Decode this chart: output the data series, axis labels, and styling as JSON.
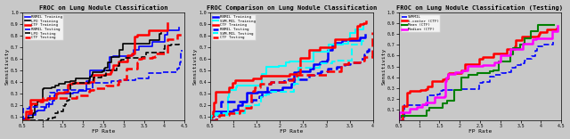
{
  "fig1": {
    "title": "FROC on Lung Nodule Classification",
    "xlabel": "FP Rate",
    "ylabel": "Sensitivity",
    "xlim": [
      0.5,
      4.5
    ],
    "ylim": [
      0.07,
      1.0
    ],
    "xticks": [
      0.5,
      1.0,
      1.5,
      2.0,
      2.5,
      3.0,
      3.5,
      4.0,
      4.5
    ],
    "xticklabels": [
      "0.5",
      "1",
      "1.5",
      "2",
      "2.5",
      "3",
      "3.5",
      "4",
      "4.5"
    ],
    "yticks": [
      0.1,
      0.2,
      0.3,
      0.4,
      0.5,
      0.6,
      0.7,
      0.8,
      0.9,
      1.0
    ],
    "yticklabels": [
      "0.1",
      "0.2",
      "0.3",
      "0.4",
      "0.5",
      "0.6",
      "0.7",
      "0.8",
      "0.9",
      "1.0"
    ],
    "legend": [
      "RNMIL Training",
      "LPO Training",
      "CTF Training",
      "RNMIL Testing",
      "LPO Testing",
      "CTF Testing"
    ],
    "colors": [
      "blue",
      "black",
      "red",
      "blue",
      "black",
      "red"
    ],
    "styles": [
      "-",
      "-",
      "-",
      "--",
      "--",
      "--"
    ],
    "linewidths": [
      1.2,
      1.2,
      1.8,
      1.2,
      1.2,
      1.8
    ]
  },
  "fig2": {
    "title": "FROC Comparison on Lung Nodule Classification",
    "xlabel": "FP Rate",
    "ylabel": "Sensitivity",
    "xlim": [
      0.5,
      4.0
    ],
    "ylim": [
      0.07,
      1.0
    ],
    "xticks": [
      0.5,
      1.0,
      1.5,
      2.0,
      2.5,
      3.0,
      3.5,
      4.0
    ],
    "xticklabels": [
      "0.5",
      "1",
      "1.5",
      "2",
      "2.5",
      "3",
      "3.5",
      "4"
    ],
    "yticks": [
      0.1,
      0.2,
      0.3,
      0.4,
      0.5,
      0.6,
      0.7,
      0.8,
      0.9,
      1.0
    ],
    "yticklabels": [
      "0.1",
      "0.2",
      "0.3",
      "0.4",
      "0.5",
      "0.6",
      "0.7",
      "0.8",
      "0.9",
      "1.0"
    ],
    "legend": [
      "RNMIL Training",
      "SVM-MIL Training",
      "CTF Training",
      "RNMIL Testing",
      "SVM-MIL Testing",
      "CTF Testing"
    ],
    "colors": [
      "blue",
      "cyan",
      "red",
      "blue",
      "cyan",
      "red"
    ],
    "styles": [
      "-",
      "-",
      "-",
      "--",
      "--",
      "--"
    ],
    "linewidths": [
      1.8,
      1.5,
      1.8,
      1.8,
      1.5,
      1.8
    ]
  },
  "fig3": {
    "title": "FROC on Lung Nodule Classification (Testing)",
    "xlabel": "FP Rate",
    "ylabel": "Sensitivity",
    "xlim": [
      0.5,
      4.5
    ],
    "ylim": [
      0.0,
      1.0
    ],
    "xticks": [
      0.5,
      1.0,
      1.5,
      2.0,
      2.5,
      3.0,
      3.5,
      4.0,
      4.5
    ],
    "xticklabels": [
      "0.5",
      "1",
      "1.5",
      "2",
      "2.5",
      "3",
      "3.5",
      "4",
      "4.5"
    ],
    "yticks": [
      0.1,
      0.2,
      0.3,
      0.4,
      0.5,
      0.6,
      0.7,
      0.8,
      0.9,
      1.0
    ],
    "yticklabels": [
      "0.1",
      "0.2",
      "0.3",
      "0.4",
      "0.5",
      "0.6",
      "0.7",
      "0.8",
      "0.9",
      "1.0"
    ],
    "legend": [
      "SVMMIL",
      "t-center (CTF)",
      "Mean (CTF)",
      "Median (CTF)"
    ],
    "colors": [
      "blue",
      "red",
      "green",
      "magenta"
    ],
    "styles": [
      "--",
      "-",
      "-",
      "-"
    ],
    "linewidths": [
      1.2,
      1.8,
      1.5,
      1.8
    ]
  },
  "bg_color": "#c8c8c8",
  "axes_bg_color": "#c8c8c8",
  "font_family": "monospace",
  "title_fontsize": 5.0,
  "label_fontsize": 4.5,
  "tick_fontsize": 3.5,
  "legend_fontsize": 3.0
}
